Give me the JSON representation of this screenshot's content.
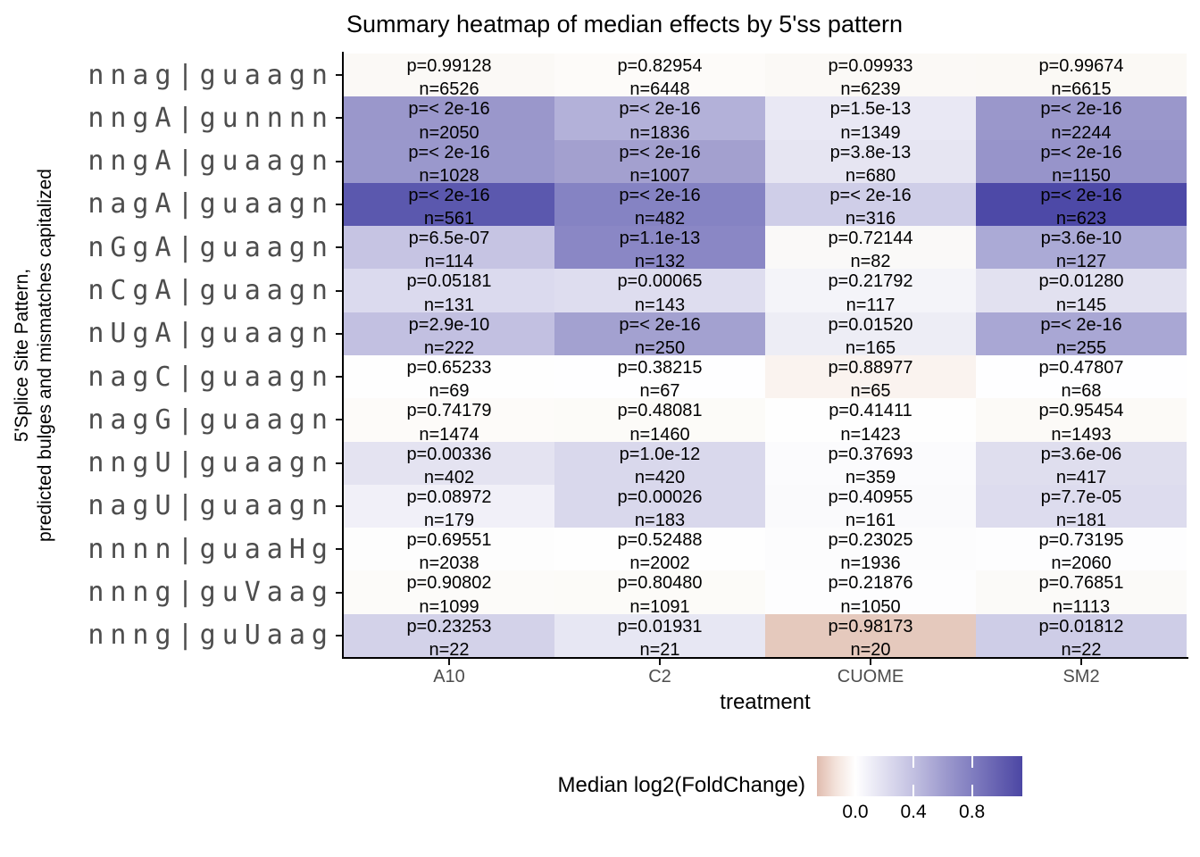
{
  "chart_data": {
    "type": "heatmap",
    "title": "Summary heatmap of median effects by 5'ss pattern",
    "xlabel": "treatment",
    "ylabel_line1": "5'Splice Site Pattern,",
    "ylabel_line2": "predicted bulges and mismatches capitalized",
    "columns": [
      "A10",
      "C2",
      "CUOME",
      "SM2"
    ],
    "rows": [
      {
        "label": "nnag|guaagn",
        "cells": [
          {
            "p": "p=0.99128",
            "n": "n=6526",
            "color": "#fbf9f6"
          },
          {
            "p": "p=0.82954",
            "n": "n=6448",
            "color": "#fdfbf9"
          },
          {
            "p": "p=0.09933",
            "n": "n=6239",
            "color": "#fbf9f6"
          },
          {
            "p": "p=0.99674",
            "n": "n=6615",
            "color": "#fbf9f5"
          }
        ]
      },
      {
        "label": "nngA|gunnnn",
        "cells": [
          {
            "p": "p=< 2e-16",
            "n": "n=2050",
            "color": "#9a97cb"
          },
          {
            "p": "p=< 2e-16",
            "n": "n=1836",
            "color": "#b3b1d9"
          },
          {
            "p": "p=1.5e-13",
            "n": "n=1349",
            "color": "#e9e8f4"
          },
          {
            "p": "p=< 2e-16",
            "n": "n=2244",
            "color": "#9a97cb"
          }
        ]
      },
      {
        "label": "nngA|guaagn",
        "cells": [
          {
            "p": "p=< 2e-16",
            "n": "n=1028",
            "color": "#9a98cc"
          },
          {
            "p": "p=< 2e-16",
            "n": "n=1007",
            "color": "#a3a0cf"
          },
          {
            "p": "p=3.8e-13",
            "n": "n=680",
            "color": "#e6e5f2"
          },
          {
            "p": "p=< 2e-16",
            "n": "n=1150",
            "color": "#9794ca"
          }
        ]
      },
      {
        "label": "nagA|guaagn",
        "cells": [
          {
            "p": "p=< 2e-16",
            "n": "n=561",
            "color": "#5b58ae"
          },
          {
            "p": "p=< 2e-16",
            "n": "n=482",
            "color": "#8583c3"
          },
          {
            "p": "p=< 2e-16",
            "n": "n=316",
            "color": "#cfcee8"
          },
          {
            "p": "p=< 2e-16",
            "n": "n=623",
            "color": "#4d49a7"
          }
        ]
      },
      {
        "label": "nGgA|guaagn",
        "cells": [
          {
            "p": "p=6.5e-07",
            "n": "n=114",
            "color": "#c6c4e3"
          },
          {
            "p": "p=1.1e-13",
            "n": "n=132",
            "color": "#8a87c5"
          },
          {
            "p": "p=0.72144",
            "n": "n=82",
            "color": "#faf9f8"
          },
          {
            "p": "p=3.6e-10",
            "n": "n=127",
            "color": "#abaad6"
          }
        ]
      },
      {
        "label": "nCgA|guaagn",
        "cells": [
          {
            "p": "p=0.05181",
            "n": "n=131",
            "color": "#dbdaee"
          },
          {
            "p": "p=0.00065",
            "n": "n=143",
            "color": "#deddef"
          },
          {
            "p": "p=0.21792",
            "n": "n=117",
            "color": "#f4f4f9"
          },
          {
            "p": "p=0.01280",
            "n": "n=145",
            "color": "#e2e1f0"
          }
        ]
      },
      {
        "label": "nUgA|guaagn",
        "cells": [
          {
            "p": "p=2.9e-10",
            "n": "n=222",
            "color": "#c2c0e1"
          },
          {
            "p": "p=< 2e-16",
            "n": "n=250",
            "color": "#a3a1d0"
          },
          {
            "p": "p=0.01520",
            "n": "n=165",
            "color": "#ededf5"
          },
          {
            "p": "p=< 2e-16",
            "n": "n=255",
            "color": "#a9a7d4"
          }
        ]
      },
      {
        "label": "nagC|guaagn",
        "cells": [
          {
            "p": "p=0.65233",
            "n": "n=69",
            "color": "#fefefe"
          },
          {
            "p": "p=0.38215",
            "n": "n=67",
            "color": "#fefeff"
          },
          {
            "p": "p=0.88977",
            "n": "n=65",
            "color": "#faf3ef"
          },
          {
            "p": "p=0.47807",
            "n": "n=68",
            "color": "#fefeff"
          }
        ]
      },
      {
        "label": "nagG|guaagn",
        "cells": [
          {
            "p": "p=0.74179",
            "n": "n=1474",
            "color": "#fdfbf9"
          },
          {
            "p": "p=0.48081",
            "n": "n=1460",
            "color": "#fcfbf8"
          },
          {
            "p": "p=0.41411",
            "n": "n=1423",
            "color": "#fefefe"
          },
          {
            "p": "p=0.95454",
            "n": "n=1493",
            "color": "#fcfaf7"
          }
        ]
      },
      {
        "label": "nngU|guaagn",
        "cells": [
          {
            "p": "p=0.00336",
            "n": "n=402",
            "color": "#e4e3f1"
          },
          {
            "p": "p=1.0e-12",
            "n": "n=420",
            "color": "#d9d8ec"
          },
          {
            "p": "p=0.37693",
            "n": "n=359",
            "color": "#fbfbfd"
          },
          {
            "p": "p=3.6e-06",
            "n": "n=417",
            "color": "#dfdeee"
          }
        ]
      },
      {
        "label": "nagU|guaagn",
        "cells": [
          {
            "p": "p=0.08972",
            "n": "n=179",
            "color": "#f1f0f8"
          },
          {
            "p": "p=0.00026",
            "n": "n=183",
            "color": "#d9d8ec"
          },
          {
            "p": "p=0.40955",
            "n": "n=161",
            "color": "#fafafc"
          },
          {
            "p": "p=7.7e-05",
            "n": "n=181",
            "color": "#dddcee"
          }
        ]
      },
      {
        "label": "nnnn|guaaHg",
        "cells": [
          {
            "p": "p=0.69551",
            "n": "n=2038",
            "color": "#fdfdfd"
          },
          {
            "p": "p=0.52488",
            "n": "n=2002",
            "color": "#fefefe"
          },
          {
            "p": "p=0.23025",
            "n": "n=1936",
            "color": "#fcfcfd"
          },
          {
            "p": "p=0.73195",
            "n": "n=2060",
            "color": "#fdfdfe"
          }
        ]
      },
      {
        "label": "nnng|guVaag",
        "cells": [
          {
            "p": "p=0.90802",
            "n": "n=1099",
            "color": "#fcfbf9"
          },
          {
            "p": "p=0.80480",
            "n": "n=1091",
            "color": "#fcfbf8"
          },
          {
            "p": "p=0.21876",
            "n": "n=1050",
            "color": "#fdfdfe"
          },
          {
            "p": "p=0.76851",
            "n": "n=1113",
            "color": "#fbfaf8"
          }
        ]
      },
      {
        "label": "nnng|guUaag",
        "cells": [
          {
            "p": "p=0.23253",
            "n": "n=22",
            "color": "#d3d2e9"
          },
          {
            "p": "p=0.01931",
            "n": "n=21",
            "color": "#e7e7f3"
          },
          {
            "p": "p=0.98173",
            "n": "n=20",
            "color": "#e5c9bd"
          },
          {
            "p": "p=0.01812",
            "n": "n=22",
            "color": "#cecde7"
          }
        ]
      }
    ],
    "legend": {
      "title": "Median log2(FoldChange)",
      "ticks": [
        {
          "label": "0.0",
          "pos": 0.187
        },
        {
          "label": "0.4",
          "pos": 0.47
        },
        {
          "label": "0.8",
          "pos": 0.755
        }
      ],
      "gradient_stops": [
        {
          "pos": 0.0,
          "color": "#e0bbae"
        },
        {
          "pos": 0.09,
          "color": "#f3e2da"
        },
        {
          "pos": 0.187,
          "color": "#ffffff"
        },
        {
          "pos": 0.3,
          "color": "#e6e5f3"
        },
        {
          "pos": 0.47,
          "color": "#c2c0e1"
        },
        {
          "pos": 0.62,
          "color": "#9e9bce"
        },
        {
          "pos": 0.755,
          "color": "#817ec0"
        },
        {
          "pos": 0.88,
          "color": "#6661b1"
        },
        {
          "pos": 1.0,
          "color": "#4c47a4"
        }
      ],
      "value_range_estimate": [
        -0.27,
        1.15
      ]
    }
  }
}
